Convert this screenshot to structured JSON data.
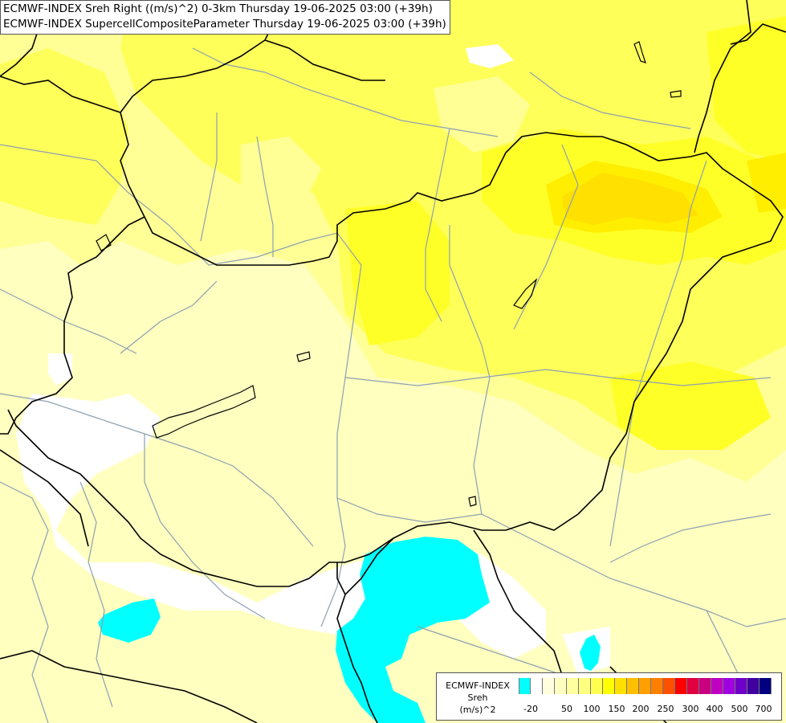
{
  "titles": {
    "line1": "ECMWF-INDEX Sreh Right ((m/s)^2) 0-3km Thursday 19-06-2025 03:00 (+39h)",
    "line2": "ECMWF-INDEX SupercellCompositeParameter Thursday 19-06-2025 03:00 (+39h)"
  },
  "legend": {
    "source": "ECMWF-INDEX",
    "parameter": "Sreh",
    "unit": "(m/s)^2",
    "colors": [
      "#00ffff",
      "#ffffff",
      "#ffffe0",
      "#ffffc0",
      "#ffffa0",
      "#ffff80",
      "#ffff50",
      "#ffff00",
      "#ffe000",
      "#ffc000",
      "#ffa000",
      "#ff8000",
      "#ff5000",
      "#ff0000",
      "#e00040",
      "#c80080",
      "#c000c0",
      "#a000e0",
      "#7000c8",
      "#4000a0",
      "#000080"
    ],
    "tick_labels": [
      "-20",
      "50",
      "100",
      "150",
      "200",
      "250",
      "300",
      "400",
      "500",
      "700"
    ]
  },
  "map_colors": {
    "background": "#ffffc0",
    "light_yellow": "#ffff96",
    "yellow": "#ffff5a",
    "bright_yellow": "#ffff28",
    "gold": "#ffee00",
    "orange": "#ffe000",
    "white": "#ffffff",
    "cyan": "#00ffff",
    "rivers": "#8ca0b0",
    "borders": "#000000"
  }
}
